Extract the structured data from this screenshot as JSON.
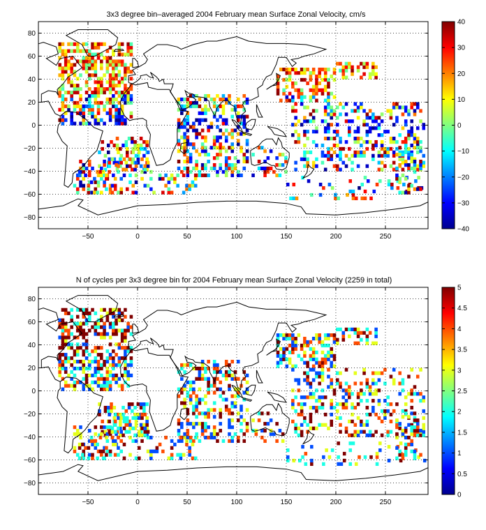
{
  "figure": {
    "panels": [
      {
        "title": "3x3 degree bin–averaged 2004 February mean Surface Zonal Velocity, cm/s",
        "colorbar_ticks": [
          "40",
          "30",
          "20",
          "10",
          "0",
          "−10",
          "−20",
          "−30",
          "−40"
        ]
      },
      {
        "title": "N of cycles per 3x3 degree bin for 2004 February mean Surface Zonal Velocity (2259 in total)",
        "colorbar_ticks": [
          "5",
          "4.5",
          "4",
          "3.5",
          "3",
          "2.5",
          "2",
          "1.5",
          "1",
          "0.5",
          "0"
        ]
      }
    ],
    "x_ticks": [
      "−50",
      "0",
      "50",
      "100",
      "150",
      "200",
      "250"
    ],
    "y_ticks": [
      "80",
      "60",
      "40",
      "20",
      "0",
      "−20",
      "−40",
      "−60",
      "−80"
    ]
  },
  "chart_data": [
    {
      "type": "heatmap",
      "title": "3x3 degree bin–averaged 2004 February mean Surface Zonal Velocity, cm/s",
      "xlim": [
        -100,
        293
      ],
      "ylim": [
        -90,
        90
      ],
      "x_ticks": [
        -50,
        0,
        50,
        100,
        150,
        200,
        250
      ],
      "y_ticks": [
        -80,
        -60,
        -40,
        -20,
        0,
        20,
        40,
        60,
        80
      ],
      "grid": true,
      "colorbar": {
        "min": -40,
        "max": 40,
        "ticks": [
          -40,
          -30,
          -20,
          -10,
          0,
          10,
          20,
          30,
          40
        ],
        "colormap": "jet",
        "position": "right"
      },
      "bin_size_deg": 3,
      "values": "sparse 3x3 degree bins over ocean regions; values range roughly -40 to 40 cm/s (dense westward negative bins in equatorial Indian and Pacific Oceans, eastward positive bins in the North Atlantic and Kuroshio region)"
    },
    {
      "type": "heatmap",
      "title": "N of cycles per 3x3 degree bin for 2004 February mean Surface Zonal Velocity (2259 in total)",
      "xlim": [
        -100,
        293
      ],
      "ylim": [
        -90,
        90
      ],
      "x_ticks": [
        -50,
        0,
        50,
        100,
        150,
        200,
        250
      ],
      "y_ticks": [
        -80,
        -60,
        -40,
        -20,
        0,
        20,
        40,
        60,
        80
      ],
      "grid": true,
      "total": 2259,
      "colorbar": {
        "min": 0,
        "max": 5,
        "ticks": [
          0,
          0.5,
          1,
          1.5,
          2,
          2.5,
          3,
          3.5,
          4,
          4.5,
          5
        ],
        "colormap": "jet",
        "position": "right"
      },
      "bin_size_deg": 3,
      "values": "number of float cycles per bin, 1 to 5; highest counts in the North Atlantic, Arabian Sea / equatorial Indian Ocean and Kuroshio extension"
    }
  ]
}
